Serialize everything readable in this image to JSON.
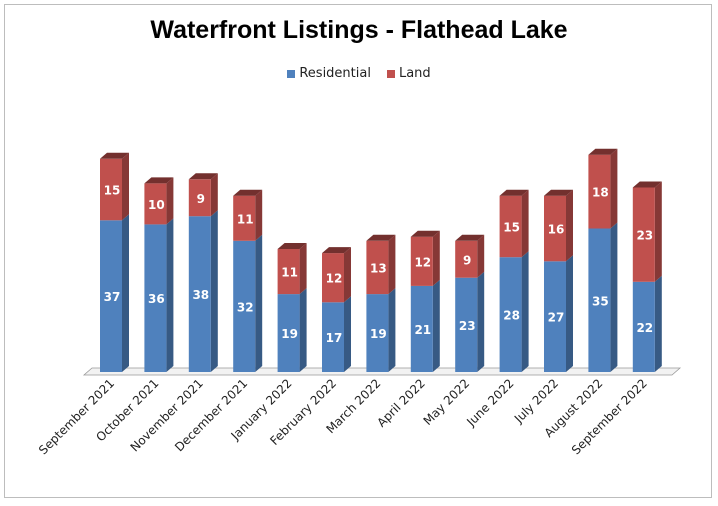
{
  "chart_data": {
    "type": "bar",
    "stacked": true,
    "title": "Waterfront Listings - Flathead Lake",
    "xlabel": "",
    "ylabel": "",
    "legend_position": "top",
    "categories": [
      "September 2021",
      "October 2021",
      "November 2021",
      "December 2021",
      "January 2022",
      "February 2022",
      "March 2022",
      "April 2022",
      "May 2022",
      "June 2022",
      "July 2022",
      "August 2022",
      "September 2022"
    ],
    "series": [
      {
        "name": "Residential",
        "color": "#4f81bd",
        "values": [
          37,
          36,
          38,
          32,
          19,
          17,
          19,
          21,
          23,
          28,
          27,
          35,
          22
        ]
      },
      {
        "name": "Land",
        "color": "#c0504d",
        "values": [
          15,
          10,
          9,
          11,
          11,
          12,
          13,
          12,
          9,
          15,
          16,
          18,
          23
        ]
      }
    ]
  }
}
